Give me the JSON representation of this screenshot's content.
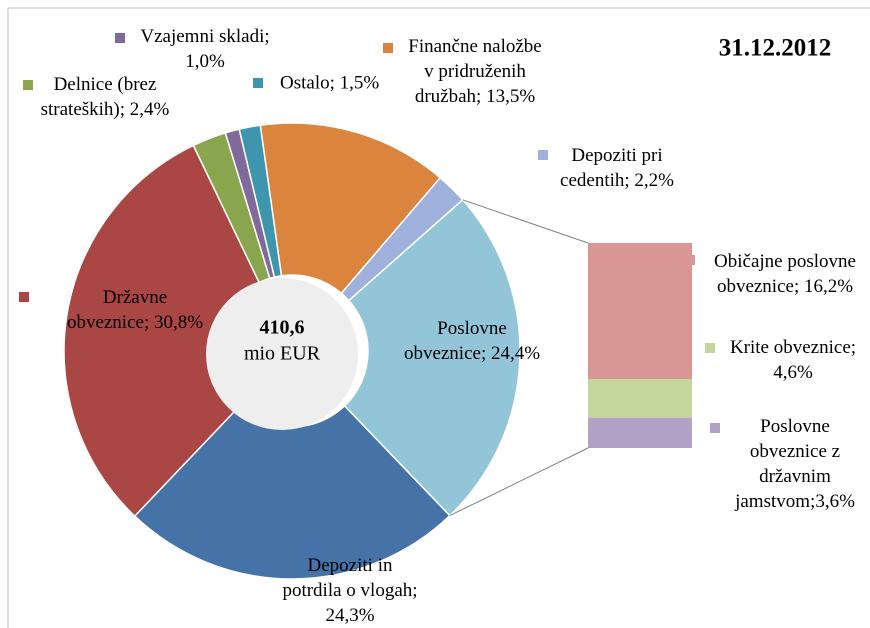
{
  "chart_data": {
    "type": "pie-of-bar",
    "title": "31.12.2012",
    "center_label": "410,6",
    "center_unit": "mio EUR",
    "values": [
      13.5,
      2.2,
      24.4,
      24.3,
      30.8,
      2.4,
      1.0,
      1.5
    ],
    "value_labels": [
      "Finančne naložbe\nv pridruženih\ndružbah; 13,5%",
      "Depoziti pri\ncedentih; 2,2%",
      "Poslovne\nobveznice; 24,4%",
      "Depoziti in\npotrdila o vlogah;\n24,3%",
      "Državne\nobveznice; 30,8%",
      "Delnice (brez\nstrateških); 2,4%",
      "Vzajemni skladi;\n1,0%",
      "Ostalo; 1,5%"
    ],
    "colors": [
      "#db843d",
      "#a0b0dc",
      "#93c5d8",
      "#4572a7",
      "#aa4643",
      "#89a54e",
      "#80699b",
      "#3d96ae"
    ],
    "breakdown_of": 2,
    "breakdown": {
      "values": [
        16.2,
        4.6,
        3.6
      ],
      "value_labels": [
        "Običajne poslovne\nobveznice; 16,2%",
        "Krite obveznice;\n4,6%",
        "Poslovne\nobveznice z\ndržavnim\njamstvom;3,6%"
      ],
      "colors": [
        "#d99694",
        "#c3d69b",
        "#b3a2c7"
      ]
    }
  }
}
